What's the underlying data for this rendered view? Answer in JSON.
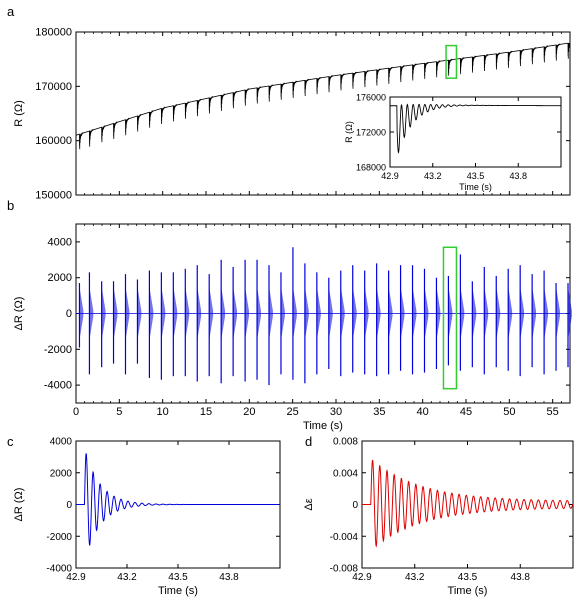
{
  "chart_data": [
    {
      "panel": "a",
      "type": "line",
      "xlim": [
        0,
        57
      ],
      "ylim": [
        150000,
        180000
      ],
      "ylabel": "R (Ω)",
      "xlabel": "",
      "y_ticks": [
        150000,
        160000,
        170000,
        180000
      ],
      "x_ticks": [
        0,
        5,
        10,
        15,
        20,
        25,
        30,
        35,
        40,
        45,
        50,
        55
      ],
      "x_tick_labels_shown": false,
      "grid": false,
      "series": [
        {
          "color": "#000000",
          "baseline": {
            "x": [
              0,
              10,
              20,
              30,
              40,
              50,
              57
            ],
            "y": [
              161000,
              166000,
              169500,
              172000,
              174200,
              176300,
              178000
            ]
          },
          "pulse_times": [
            0.4,
            1.55,
            2.96,
            4.33,
            5.71,
            7.09,
            8.47,
            9.85,
            11.23,
            12.61,
            13.99,
            15.37,
            16.75,
            18.13,
            19.51,
            20.89,
            22.27,
            23.65,
            25.03,
            26.41,
            27.79,
            29.17,
            30.55,
            31.93,
            33.31,
            34.69,
            36.07,
            37.45,
            38.83,
            40.21,
            41.59,
            42.97,
            44.35,
            45.73,
            47.11,
            48.49,
            49.87,
            51.25,
            52.63,
            54.01,
            55.39,
            56.77
          ],
          "pulse_drop": 3500
        }
      ],
      "highlight_box": {
        "x": [
          42.7,
          43.9
        ],
        "y": [
          171500,
          177500
        ],
        "color": "#33cc33"
      },
      "inset": {
        "type": "line",
        "xlim": [
          42.9,
          44.1
        ],
        "ylim": [
          168000,
          176000
        ],
        "ylabel": "R (Ω)",
        "xlabel": "Time (s)",
        "x_ticks": [
          42.9,
          43.2,
          43.5,
          43.8
        ],
        "x_tick_labels": [
          "42.9",
          "43.2",
          "43.5",
          "43.8"
        ],
        "y_ticks": [
          168000,
          172000,
          176000
        ],
        "y_tick_labels": [
          "168000",
          "172000",
          "176000"
        ],
        "series": [
          {
            "color": "#000000",
            "baseline": 175000,
            "start": 42.95,
            "amplitude": 6000,
            "decay_s": 0.11,
            "period_s": 0.041
          }
        ]
      }
    },
    {
      "panel": "b",
      "type": "line",
      "xlim": [
        0,
        57
      ],
      "ylim": [
        -5000,
        5000
      ],
      "ylabel": "ΔR (Ω)",
      "xlabel": "Time (s)",
      "y_ticks": [
        -4000,
        -2000,
        0,
        2000,
        4000
      ],
      "x_ticks": [
        0,
        5,
        10,
        15,
        20,
        25,
        30,
        35,
        40,
        45,
        50,
        55
      ],
      "grid": false,
      "series": [
        {
          "color": "#0000dd",
          "pulse_times": [
            0.4,
            1.55,
            2.96,
            4.33,
            5.71,
            7.09,
            8.47,
            9.85,
            11.23,
            12.61,
            13.99,
            15.37,
            16.75,
            18.13,
            19.51,
            20.89,
            22.27,
            23.65,
            25.03,
            26.41,
            27.79,
            29.17,
            30.55,
            31.93,
            33.31,
            34.69,
            36.07,
            37.45,
            38.83,
            40.21,
            41.59,
            42.97,
            44.35,
            45.73,
            47.11,
            48.49,
            49.87,
            51.25,
            52.63,
            54.01,
            55.39,
            56.77
          ],
          "pulse_max": [
            1700,
            2300,
            1800,
            1800,
            2200,
            1900,
            2400,
            2300,
            2300,
            2500,
            2700,
            2200,
            3000,
            2600,
            3000,
            3000,
            2700,
            2300,
            3700,
            2800,
            2300,
            2000,
            2400,
            2700,
            2400,
            2800,
            2400,
            2700,
            2700,
            2500,
            2000,
            2100,
            3300,
            1800,
            2600,
            2100,
            2500,
            2700,
            2200,
            2400,
            1700,
            1700
          ],
          "pulse_min": [
            -1900,
            -3400,
            -3000,
            -2800,
            -3400,
            -2800,
            -3600,
            -3700,
            -3500,
            -3500,
            -3800,
            -3500,
            -3900,
            -3500,
            -3800,
            -3700,
            -4000,
            -3400,
            -3700,
            -3900,
            -3400,
            -3100,
            -3500,
            -3300,
            -3400,
            -3500,
            -3400,
            -3200,
            -3400,
            -3300,
            -3100,
            -2900,
            -3200,
            -3000,
            -3400,
            -3000,
            -3200,
            -3500,
            -3000,
            -3400,
            -3200,
            -3000
          ]
        }
      ],
      "highlight_box": {
        "x": [
          42.4,
          43.9
        ],
        "y": [
          -4200,
          3700
        ],
        "color": "#33cc33"
      }
    },
    {
      "panel": "c",
      "type": "line",
      "xlim": [
        42.9,
        44.1
      ],
      "ylim": [
        -4000,
        4000
      ],
      "ylabel": "ΔR (Ω)",
      "xlabel": "Time (s)",
      "y_ticks": [
        -4000,
        -2000,
        0,
        2000,
        4000
      ],
      "x_ticks": [
        42.9,
        43.2,
        43.5,
        43.8
      ],
      "x_tick_labels": [
        "42.9",
        "43.2",
        "43.5",
        "43.8"
      ],
      "series": [
        {
          "color": "#0000dd",
          "start": 42.95,
          "amplitude": 3600,
          "decay_s": 0.09,
          "period_s": 0.041
        }
      ]
    },
    {
      "panel": "d",
      "type": "line",
      "xlim": [
        42.9,
        44.1
      ],
      "ylim": [
        -0.008,
        0.008
      ],
      "ylabel": "Δε",
      "xlabel": "Time (s)",
      "y_ticks": [
        -0.008,
        -0.004,
        0,
        0.004,
        0.008
      ],
      "y_tick_labels": [
        "-0.008",
        "-0.004",
        "0",
        "0.004",
        "0.008"
      ],
      "x_ticks": [
        42.9,
        43.2,
        43.5,
        43.8
      ],
      "x_tick_labels": [
        "42.9",
        "43.2",
        "43.5",
        "43.8"
      ],
      "series": [
        {
          "color": "#dd0000",
          "start": 42.95,
          "amplitude": 0.0058,
          "decay_s": 0.28,
          "period_s": 0.041,
          "floor": 0.0004
        }
      ]
    }
  ]
}
